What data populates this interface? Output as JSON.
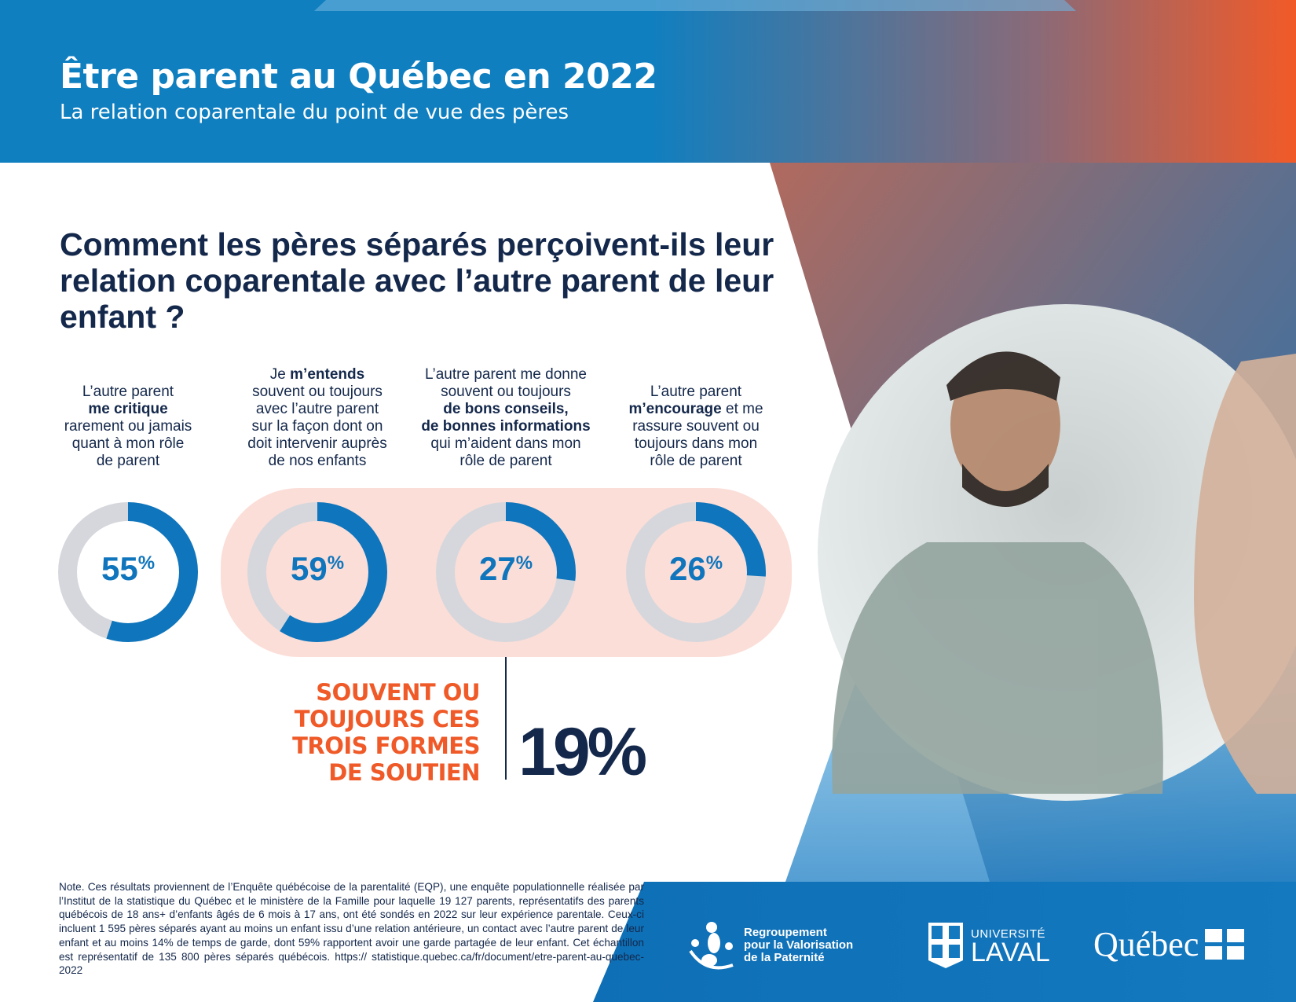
{
  "header": {
    "title": "Être parent au Québec en 2022",
    "subtitle": "La relation coparentale du point de vue des pères"
  },
  "question": "Comment les pères séparés perçoivent-ils leur relation coparentale avec l’autre parent de leur enfant ?",
  "colors": {
    "blue": "#0f75bc",
    "grey": "#d6d7dc",
    "navy": "#14284b",
    "orange": "#ef5a28",
    "pink": "#fbded8"
  },
  "items": [
    {
      "label_parts": [
        [
          "L’autre parent",
          false
        ],
        [
          "me critique",
          true
        ],
        [
          "rarement ou jamais",
          false
        ],
        [
          "quant à mon rôle",
          false
        ],
        [
          "de parent",
          false
        ]
      ],
      "value": 55,
      "value_label": "55",
      "unit": "%"
    },
    {
      "label_parts": [
        [
          "Je ",
          false
        ],
        [
          "m’entends",
          true
        ],
        [
          "souvent ou toujours",
          false
        ],
        [
          "avec l’autre parent",
          false
        ],
        [
          "sur la façon dont on",
          false
        ],
        [
          "doit intervenir auprès",
          false
        ],
        [
          "de nos enfants",
          false
        ]
      ],
      "value": 59,
      "value_label": "59",
      "unit": "%"
    },
    {
      "label_parts": [
        [
          "L’autre parent me donne",
          false
        ],
        [
          "souvent ou toujours",
          false
        ],
        [
          "de bons conseils,",
          true
        ],
        [
          "de bonnes informations",
          true
        ],
        [
          "qui m’aident dans mon",
          false
        ],
        [
          "rôle de parent",
          false
        ]
      ],
      "value": 27,
      "value_label": "27",
      "unit": "%"
    },
    {
      "label_parts": [
        [
          "L’autre parent",
          false
        ],
        [
          "m’encourage",
          true
        ],
        [
          "rassure souvent ou",
          false
        ],
        [
          "toujours dans mon",
          false
        ],
        [
          "rôle de parent",
          false
        ]
      ],
      "value": 26,
      "value_label": "26",
      "unit": "%"
    }
  ],
  "combined": {
    "lines": [
      "SOUVENT OU",
      "TOUJOURS CES",
      "TROIS FORMES",
      "DE SOUTIEN"
    ],
    "value": "19%"
  },
  "note": "Note. Ces résultats proviennent de l’Enquête québécoise de la parentalité (EQP), une enquête populationnelle réalisée par l’Institut de la statistique du Québec et le ministère de la Famille pour laquelle 19 127 parents, représentatifs des parents québécois de 18 ans+ d’enfants âgés de 6 mois à 17 ans, ont été sondés en 2022 sur leur expérience parentale. Ceux-ci incluent 1 595 pères séparés ayant au moins un enfant issu d’une relation antérieure, un contact avec l’autre parent de leur enfant et au moins 14% de temps de garde, dont 59% rapportent avoir une garde partagée de leur enfant. Cet échantillon est représentatif de 135 800 pères séparés québécois. https:// statistique.quebec.ca/fr/document/etre-parent-au-quebec-2022",
  "logos": {
    "rvp": [
      "Regroupement",
      "pour la Valorisation",
      "de la Paternité"
    ],
    "laval": [
      "UNIVERSITÉ",
      "LAVAL"
    ],
    "quebec": "Québec"
  }
}
